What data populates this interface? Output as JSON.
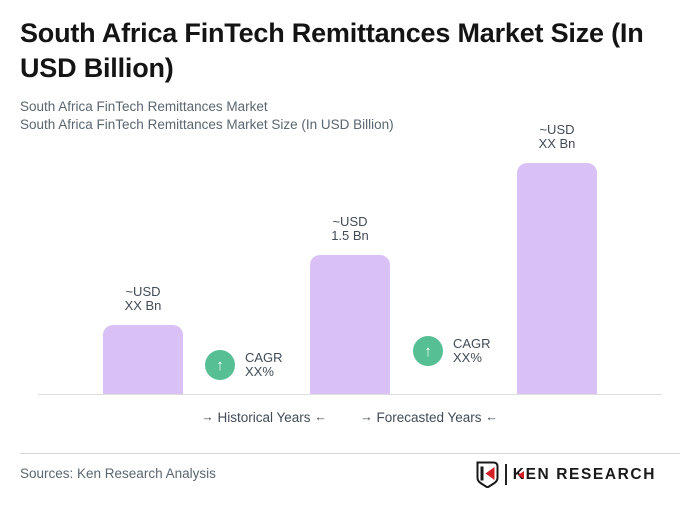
{
  "header": {
    "title": "South Africa FinTech Remittances Market Size (In USD Billion)",
    "subtitle_line1": "South Africa FinTech Remittances Market",
    "subtitle_line2": "South Africa FinTech Remittances Market Size (In USD Billion)"
  },
  "chart_data": {
    "type": "bar",
    "title": "South Africa FinTech Remittances Market Size (In USD Billion)",
    "unit": "USD Billion",
    "ylim": [
      0,
      2.7
    ],
    "grid": false,
    "legend": false,
    "bars": [
      {
        "label_line1": "~USD",
        "label_line2": "XX Bn",
        "value_est_bn": 0.75
      },
      {
        "label_line1": "~USD",
        "label_line2": "1.5 Bn",
        "value_est_bn": 1.5
      },
      {
        "label_line1": "~USD",
        "label_line2": "XX Bn",
        "value_est_bn": 2.5
      }
    ],
    "cagr_badges": [
      {
        "line1": "CAGR",
        "line2": "XX%"
      },
      {
        "line1": "CAGR",
        "line2": "XX%"
      }
    ],
    "period_labels": {
      "historical": "Historical Years",
      "forecasted": "Forecasted Years",
      "arrow_right": "→",
      "arrow_left": "←"
    }
  },
  "icons": {
    "up_arrow": "↑"
  },
  "footer": {
    "sources": "Sources: Ken Research Analysis",
    "logo_wordmark": "KEN RESEARCH"
  },
  "colors": {
    "bar_fill": "#d9c1f5",
    "badge_green": "#57bf94",
    "title_text": "#141414",
    "subtitle_text": "#5b6670",
    "label_text": "#414b57",
    "axis_line": "#dedede",
    "divider": "#d6d6d6",
    "logo_red": "#d61f26",
    "logo_black": "#191919"
  }
}
